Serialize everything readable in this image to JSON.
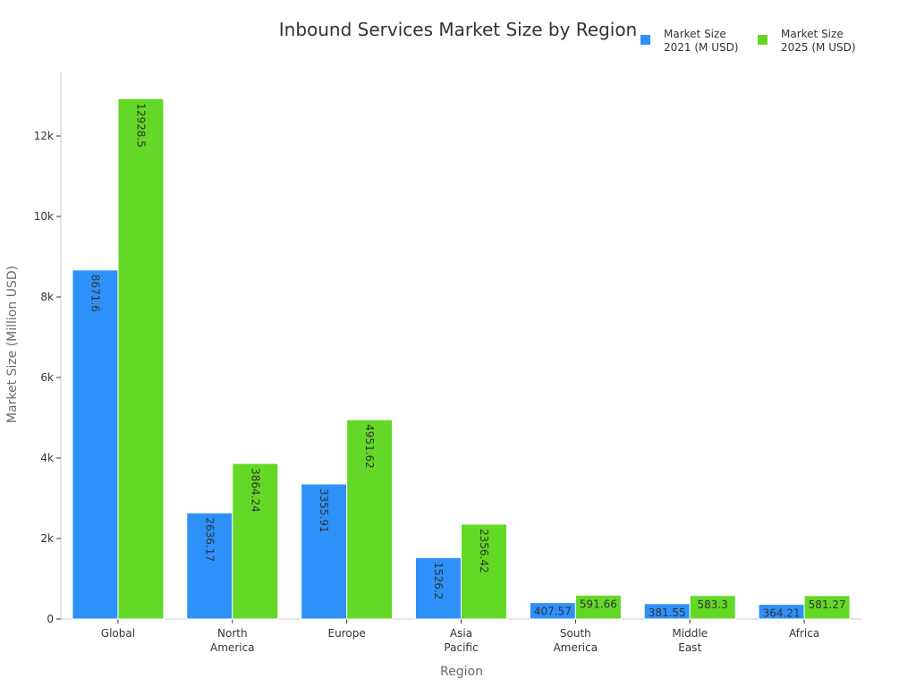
{
  "chart_data": {
    "type": "bar",
    "title": "Inbound Services Market Size by Region",
    "xlabel": "Region",
    "ylabel": "Market Size (Million USD)",
    "ylim": [
      0,
      13600
    ],
    "yticks": [
      0,
      2000,
      4000,
      6000,
      8000,
      10000,
      12000
    ],
    "ytick_labels": [
      "0",
      "2k",
      "4k",
      "6k",
      "8k",
      "10k",
      "12k"
    ],
    "grid": false,
    "legend_position": "top-right",
    "categories": [
      [
        "Global"
      ],
      [
        "North",
        "America"
      ],
      [
        "Europe"
      ],
      [
        "Asia",
        "Pacific"
      ],
      [
        "South",
        "America"
      ],
      [
        "Middle",
        "East"
      ],
      [
        "Africa"
      ]
    ],
    "series": [
      {
        "name": "Market Size 2021 (M USD)",
        "legend_lines": [
          "Market Size",
          "2021 (M USD)"
        ],
        "color": "#2e91fa",
        "values": [
          8671.6,
          2636.17,
          3355.91,
          1526.2,
          407.57,
          381.55,
          364.21
        ],
        "labels": [
          "8671.6",
          "2636.17",
          "3355.91",
          "1526.2",
          "407.57",
          "381.55",
          "364.21"
        ]
      },
      {
        "name": "Market Size 2025 (M USD)",
        "legend_lines": [
          "Market Size",
          "2025 (M USD)"
        ],
        "color": "#64d826",
        "values": [
          12928.5,
          3864.24,
          4951.62,
          2356.42,
          591.66,
          583.3,
          581.27
        ],
        "labels": [
          "12928.5",
          "3864.24",
          "4951.62",
          "2356.42",
          "591.66",
          "583.3",
          "581.27"
        ]
      }
    ]
  }
}
